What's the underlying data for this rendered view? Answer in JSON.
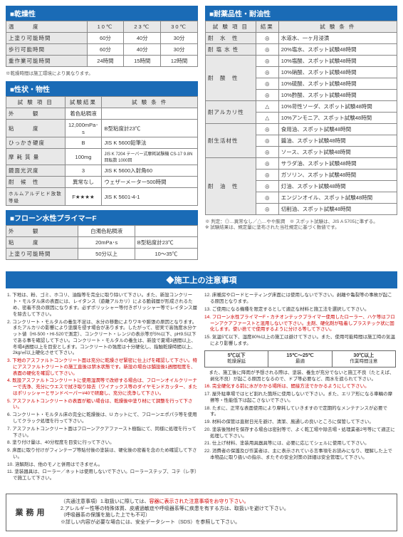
{
  "sec1": {
    "title": "■乾燥性",
    "cols": [
      "温　　　度",
      "10℃",
      "23℃",
      "30℃"
    ],
    "rows": [
      [
        "上塗り可能時間",
        "60分",
        "40分",
        "30分"
      ],
      [
        "歩行可能時間",
        "60分",
        "40分",
        "30分"
      ],
      [
        "重作業可能時間",
        "24時間",
        "15時間",
        "12時間"
      ]
    ],
    "note": "※乾燥時間は施工環境により異なります。"
  },
  "sec2": {
    "title": "■性状・物性",
    "cols": [
      "試 験 項 目",
      "試験結果",
      "試 験 条 件"
    ],
    "rows": [
      [
        "外　　　観",
        "着色粘稠液",
        ""
      ],
      [
        "粘　　　度",
        "12,000mPa･s",
        "B型粘度計23℃"
      ],
      [
        "ひっかき硬度",
        "B",
        "JIS K 5600鉛筆法"
      ],
      [
        "摩 耗 質 量",
        "100mg",
        "JIS K 7204 テーバー式摩耗試験機 CS-17 9.8N 回転数 1000回"
      ],
      [
        "鏡面光沢度",
        "3",
        "JIS K 5600入射角60"
      ],
      [
        "耐　候　性",
        "異常なし",
        "ウェザーメーター500時間"
      ],
      [
        "ホルムアルデヒド放散等級",
        "F★★★★",
        "JIS K 5601-4-1"
      ]
    ]
  },
  "sec3": {
    "title": "■フローン水性プライマーF",
    "rows": [
      [
        "外　　　観",
        "白濁色粘稠液",
        ""
      ],
      [
        "粘　　　度",
        "20mPa･s",
        "B型粘度計23℃"
      ],
      [
        "上塗り可能時間",
        "50分以上",
        "10～35℃"
      ]
    ]
  },
  "sec4": {
    "title": "■耐薬品性・耐油性",
    "cols": [
      "試 験 項 目",
      "結果",
      "試 験 条 件"
    ],
    "rows": [
      [
        "耐　水　性",
        "◎",
        "水道水、一ヶ月浸漬"
      ],
      [
        "耐 塩 水 性",
        "◎",
        "20%塩水、スポット試験48時間"
      ],
      [
        "耐　酸　性",
        "◎",
        "10%塩酸、スポット試験48時間"
      ],
      [
        "",
        "◎",
        "10%硝酸、スポット試験48時間"
      ],
      [
        "",
        "◎",
        "10%硫酸、スポット試験48時間"
      ],
      [
        "",
        "◎",
        "10%酢酸、スポット試験48時間"
      ],
      [
        "耐アルカリ性",
        "△",
        "10%苛性ソーダ、スポット試験48時間"
      ],
      [
        "",
        "△",
        "10%アンモニア、スポット試験48時間"
      ],
      [
        "耐生活材性",
        "◎",
        "食用油、スポット試験48時間"
      ],
      [
        "",
        "◎",
        "醤油、スポット試験48時間"
      ],
      [
        "",
        "◎",
        "ソース、スポット試験48時間"
      ],
      [
        "耐　油　性",
        "◎",
        "サラダ油、スポット試験48時間"
      ],
      [
        "",
        "◎",
        "ガソリン、スポット試験48時間"
      ],
      [
        "",
        "◎",
        "灯油、スポット試験48時間"
      ],
      [
        "",
        "◎",
        "エンジンオイル、スポット試験48時間"
      ],
      [
        "",
        "◎",
        "切削油、スポット試験48時間"
      ]
    ],
    "note": "※ 判定：◎…異常なし／△…やや膨潤　※ スポット試験は、JIS A 5705に準ずる。\n※ 試験結果は、規定量に塗布された当社規定に基づく数値です。"
  },
  "prec": {
    "title": "◆施工上の注意事項",
    "left": [
      "1. 下地は、粉、ゴミ、ホコリ、油脂等を完全に取り除いて下さい。また、新設コンクリート・モルタル床の表面には、レイタンス（遊離アルカリ）による脆弱層が形成されるため、密着不良の原因になります。必ずポリッシャー等付きポリッシャー等でレイタンス層を除去して下さい。",
      "2. コンクリート・モルタルの養生不足は、水分の移動によりワキや膨張の原因となります。またアルカリの影響により塗膜を侵す場合があります。したがって、密実で高強度水分ケット値（HI-500・HI-520で測定）、コンクリート・レンジの表示等が5%以下、pH9.5以下である事を確認して下さい。コンクリート・モルタルの養生は、新設で夏場3週間以上、冬場4週間以上を目安とします。コンクリートの強度は十分硬化し、指触乾燥時間以上、2kg/㎡以上硬化させて下さい。",
      "3. 下地のアスファルトコンクリート面は充分に乾燥させ緊密に仕上げを確認して下さい。特にアスファルトクリートの施工直後は禁水状態です。新設の場合は舗設後1週間程度を、表面の硬化を確認して下さい。",
      "4. 既設アスファルトコンクリートに使用湿潤等で改修する場合は、フローンオイルクリーナーで洗浄、充分にウエスで拭き取り除去（ワイナックス等のダイヤモンドカッター、またはポリッシャーとサンドペーパー#40で研磨し、充分に洗浄して下さい。",
      "5. アスファルトコンクリートの表面が粗い場合は、乾燥後中塗り材にて調整を行って下さい。",
      "6. コンクリート・モルタル床の完全に乾燥後は、U カットにて、フローンエポパラ等を使用してクラック処理を行って下さい。",
      "7. アスファルトコンクリート面はフローンアクアファースト樹脂にて、同様に処理を行って下さい。",
      "8. 塗り付け量は、40分程度を目安に行って下さい。",
      "9. 床面に取り付けがフィンテープ等貼付後の塗装は、硬化後の密着を念のため確認して下さい。",
      "10. 溶解剤は、他のモノと併用はできません。",
      "11. 塗装器具は、ローラー／ネットは使用しないで下さい。ローラーステップ、コテ（レ字）で施工して下さい。"
    ],
    "right_top": [
      "12. 床暖房やロードヒーティング床面には使用しないで下さい。剥離や亀裂等の事故が起こる原因となります。",
      "13. ご使用になる機種を限定するとして適正な材料と施工法を選択して下さい。",
      "14. フローン水性プライマーF・カチオンテックプライマー使用したローラー、ハケ等はフローンアクアファーストと混用しないで下さい。主剤、硬化剤が吸着しプラスチック状に固化します。使い捨てで使用するように分ける等して下さい。",
      "15. 気温5℃以下、湿度80%以上の施工は避けて下さい。また、使用可能時間は施工時の気温により影響します。"
    ],
    "temps": [
      {
        "t": "5℃以下",
        "b": "乾燥遅延"
      },
      {
        "t": "15℃～25℃",
        "b": "最適"
      },
      {
        "t": "30℃以上",
        "b": "作業時間注意"
      }
    ],
    "right_bot": [
      "　また、施工後に降雨が予想される際は、塗装、養生が充分でないと施工不良（たとえば、剥化不良）が起こる原因となるので、ドブ等必要など、雨水を遮られて下さい。",
      "16. 完全硬化する前に水がかかる場所は、間接方法でかかるようにして下さい。",
      "17. 屋外駐車場ではヒビ割れた箇所に使用しないで下さい。また、エリア形になる車輛の摩擦等・性能低下は起こさないで下さい。",
      "18. たまに、正常な表面使用により摩耗していきますので定期的なメンテナンスが必要です。",
      "19. 材料の保管は直射日光を避け、清潔、風通しの良いところに保管して下さい。",
      "20. 塗装後残材を保存する場合は密封等で、よく乾工場や除去場・処理業者2号等にて適正に処理して下さい。",
      "21. 仕上げ材料、塗装用具器具等には、必要に応じてシェルに使用して下さい。",
      "22. 消費者の保護及び作業者は、主に表示されている言事項をお読みになり、理解した上で本物品に取り扱いの指示、またその安全対策の詳細は安全管理して下さい。"
    ]
  },
  "footer": {
    "left": "業務用",
    "lines": [
      "（共通注意事項）1.取扱いに際しては、容器に表示された注意事項をお守り下さい。",
      "2.アレルギー性等の特殊体質、皮膚過敏症や呼吸器系等に疾患を有する方は、取扱いを避けて下さい。",
      "（呼吸器系の保護を施した上でも不可）",
      "※詳しい内容が必要な場合には、安全データシート（SDS）を参照して下さい。"
    ]
  }
}
